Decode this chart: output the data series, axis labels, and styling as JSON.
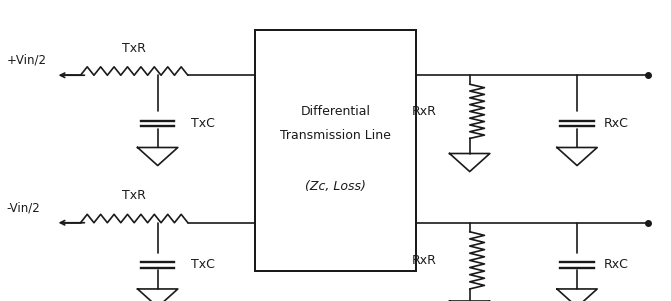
{
  "fig_width": 6.71,
  "fig_height": 3.01,
  "dpi": 100,
  "bg_color": "#ffffff",
  "line_color": "#1a1a1a",
  "line_width": 1.2,
  "font_size": 9,
  "box_label_top": "Differential",
  "box_label_mid": "Transmission Line",
  "box_label_bot": "(Zc, Loss)"
}
